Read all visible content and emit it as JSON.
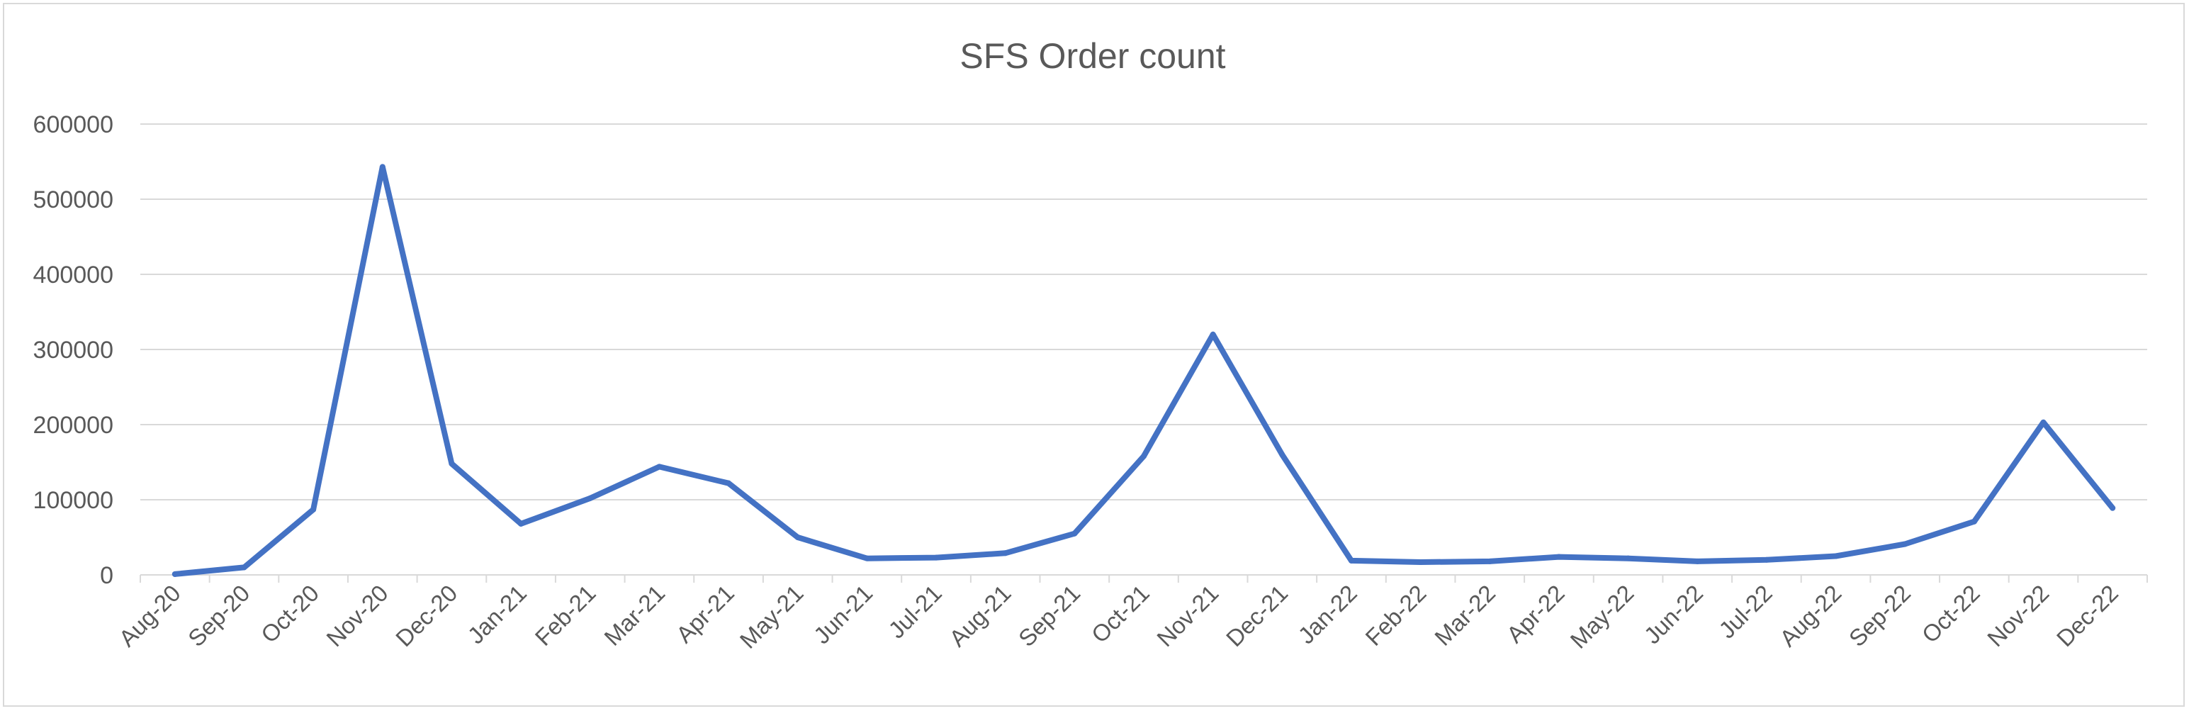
{
  "chart_data": {
    "type": "line",
    "title": "SFS Order count",
    "xlabel": "",
    "ylabel": "",
    "ylim": [
      0,
      600000
    ],
    "yticks": [
      "0",
      "100000",
      "200000",
      "300000",
      "400000",
      "500000",
      "600000"
    ],
    "grid": true,
    "legend": "none",
    "categories": [
      "Aug-20",
      "Sep-20",
      "Oct-20",
      "Nov-20",
      "Dec-20",
      "Jan-21",
      "Feb-21",
      "Mar-21",
      "Apr-21",
      "May-21",
      "Jun-21",
      "Jul-21",
      "Aug-21",
      "Sep-21",
      "Oct-21",
      "Nov-21",
      "Dec-21",
      "Jan-22",
      "Feb-22",
      "Mar-22",
      "Apr-22",
      "May-22",
      "Jun-22",
      "Jul-22",
      "Aug-22",
      "Sep-22",
      "Oct-22",
      "Nov-22",
      "Dec-22"
    ],
    "series": [
      {
        "color": "#4472c4",
        "values": [
          1000,
          10000,
          87000,
          543000,
          148000,
          68000,
          102000,
          144000,
          122000,
          50000,
          22000,
          23000,
          29000,
          55000,
          158000,
          320000,
          160000,
          19000,
          17000,
          18000,
          24000,
          22000,
          18000,
          20000,
          25000,
          41000,
          71000,
          203000,
          89000
        ]
      }
    ],
    "colors": {
      "grid": "#d9d9d9",
      "axis": "#d9d9d9",
      "text": "#595959"
    }
  }
}
